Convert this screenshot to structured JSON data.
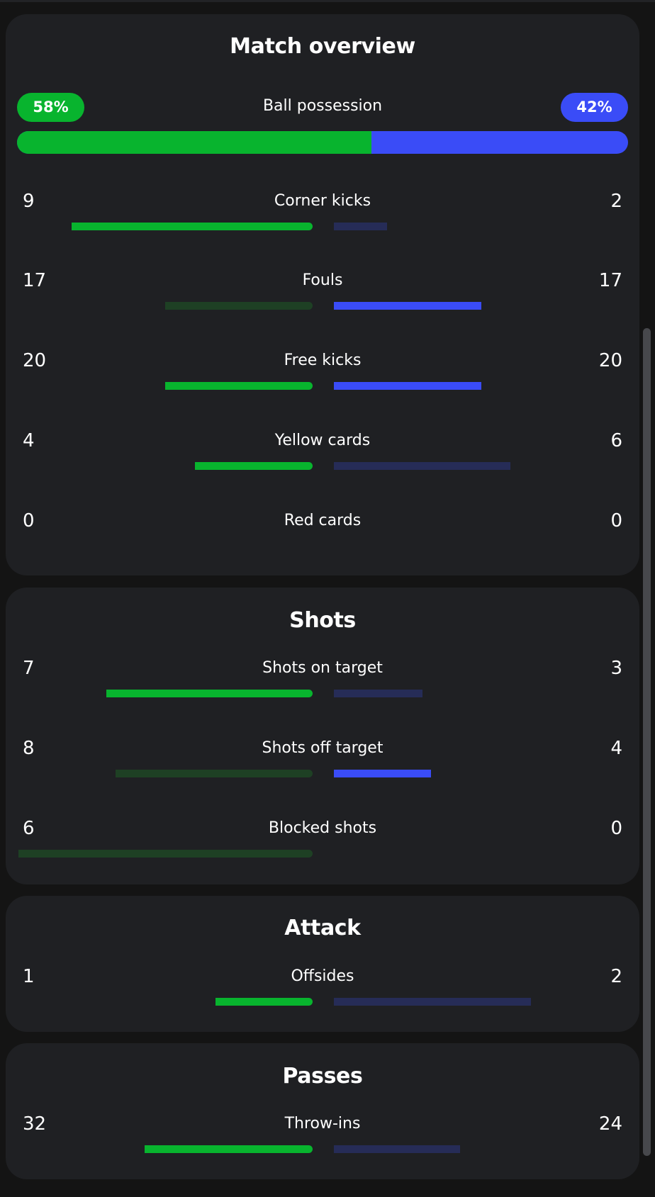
{
  "colors": {
    "home_strong": "#08b42e",
    "home_weak": "#1e4024",
    "away_strong": "#3a4cf7",
    "away_weak": "#262c57",
    "card_bg": "#1f2023",
    "page_bg": "#141414"
  },
  "match_overview": {
    "title": "Match overview",
    "possession": {
      "label": "Ball possession",
      "home_label": "58%",
      "away_label": "42%",
      "home_fraction": 0.58
    },
    "stats": [
      {
        "label": "Corner kicks",
        "home": "9",
        "away": "2",
        "home_fraction": 0.82,
        "away_fraction": 0.18,
        "winner": "home"
      },
      {
        "label": "Fouls",
        "home": "17",
        "away": "17",
        "home_fraction": 0.5,
        "away_fraction": 0.5,
        "winner": "away"
      },
      {
        "label": "Free kicks",
        "home": "20",
        "away": "20",
        "home_fraction": 0.5,
        "away_fraction": 0.5,
        "winner": "both"
      },
      {
        "label": "Yellow cards",
        "home": "4",
        "away": "6",
        "home_fraction": 0.4,
        "away_fraction": 0.6,
        "winner": "home"
      },
      {
        "label": "Red cards",
        "home": "0",
        "away": "0",
        "home_fraction": 0,
        "away_fraction": 0,
        "winner": "none"
      }
    ]
  },
  "shots": {
    "title": "Shots",
    "stats": [
      {
        "label": "Shots on target",
        "home": "7",
        "away": "3",
        "home_fraction": 0.7,
        "away_fraction": 0.3,
        "winner": "home"
      },
      {
        "label": "Shots off target",
        "home": "8",
        "away": "4",
        "home_fraction": 0.67,
        "away_fraction": 0.33,
        "winner": "away"
      },
      {
        "label": "Blocked shots",
        "home": "6",
        "away": "0",
        "home_fraction": 1.0,
        "away_fraction": 0,
        "winner": "away"
      }
    ]
  },
  "attack": {
    "title": "Attack",
    "stats": [
      {
        "label": "Offsides",
        "home": "1",
        "away": "2",
        "home_fraction": 0.33,
        "away_fraction": 0.67,
        "winner": "home"
      }
    ]
  },
  "passes": {
    "title": "Passes",
    "stats": [
      {
        "label": "Throw-ins",
        "home": "32",
        "away": "24",
        "home_fraction": 0.57,
        "away_fraction": 0.43,
        "winner": "home"
      }
    ]
  }
}
